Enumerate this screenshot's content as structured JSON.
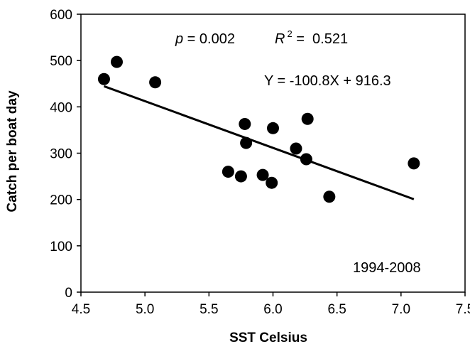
{
  "chart_data": {
    "type": "scatter",
    "title": "",
    "xlabel": "SST Celsius",
    "ylabel": "Catch per boat day",
    "xlim": [
      4.5,
      7.5
    ],
    "ylim": [
      0,
      600
    ],
    "x_ticks": [
      "4.5",
      "5.0",
      "5.5",
      "6.0",
      "6.5",
      "7.0",
      "7.5"
    ],
    "y_ticks": [
      "0",
      "100",
      "200",
      "300",
      "400",
      "500",
      "600"
    ],
    "grid": false,
    "legend": "none",
    "points": [
      {
        "x": 4.68,
        "y": 460
      },
      {
        "x": 4.78,
        "y": 497
      },
      {
        "x": 5.08,
        "y": 453
      },
      {
        "x": 5.65,
        "y": 260
      },
      {
        "x": 5.75,
        "y": 250
      },
      {
        "x": 5.78,
        "y": 363
      },
      {
        "x": 5.79,
        "y": 322
      },
      {
        "x": 5.92,
        "y": 253
      },
      {
        "x": 5.99,
        "y": 236
      },
      {
        "x": 6.0,
        "y": 354
      },
      {
        "x": 6.18,
        "y": 310
      },
      {
        "x": 6.26,
        "y": 287
      },
      {
        "x": 6.27,
        "y": 374
      },
      {
        "x": 6.44,
        "y": 206
      },
      {
        "x": 7.1,
        "y": 278
      }
    ],
    "trendline": {
      "slope": -100.8,
      "intercept": 916.3,
      "x_start": 4.68,
      "x_end": 7.1
    },
    "annotations": {
      "p_label": "p",
      "p_value": " = 0.002",
      "r_label": "R",
      "r_exp": "2",
      "r_value": " =  0.521",
      "equation": "Y = -100.8X + 916.3",
      "period": "1994-2008"
    },
    "colors": {
      "points": "#000000",
      "line": "#000000",
      "axes": "#000000"
    }
  }
}
